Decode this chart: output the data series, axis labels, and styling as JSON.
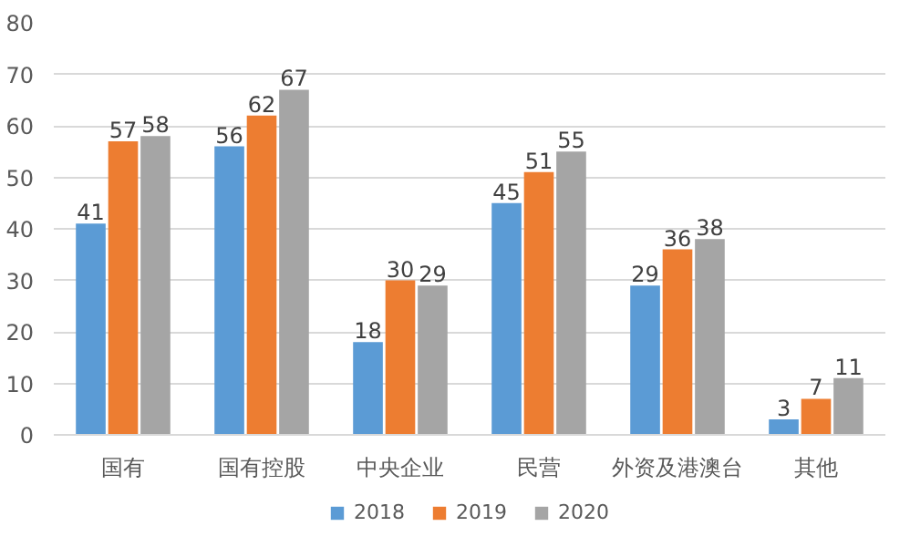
{
  "chart_data": {
    "type": "bar",
    "categories": [
      "国有",
      "国有控股",
      "中央企业",
      "民营",
      "外资及港澳台",
      "其他"
    ],
    "series": [
      {
        "name": "2018",
        "color": "#5b9bd5",
        "values": [
          41,
          56,
          18,
          45,
          29,
          3
        ]
      },
      {
        "name": "2019",
        "color": "#ed7d31",
        "values": [
          57,
          62,
          30,
          51,
          36,
          7
        ]
      },
      {
        "name": "2020",
        "color": "#a5a5a5",
        "values": [
          58,
          67,
          29,
          55,
          38,
          11
        ]
      }
    ],
    "ylim": [
      0,
      80
    ],
    "yticks": [
      0,
      10,
      20,
      30,
      40,
      50,
      60,
      70,
      80
    ],
    "grid": "y",
    "legend": "bottom",
    "data_labels": true
  }
}
